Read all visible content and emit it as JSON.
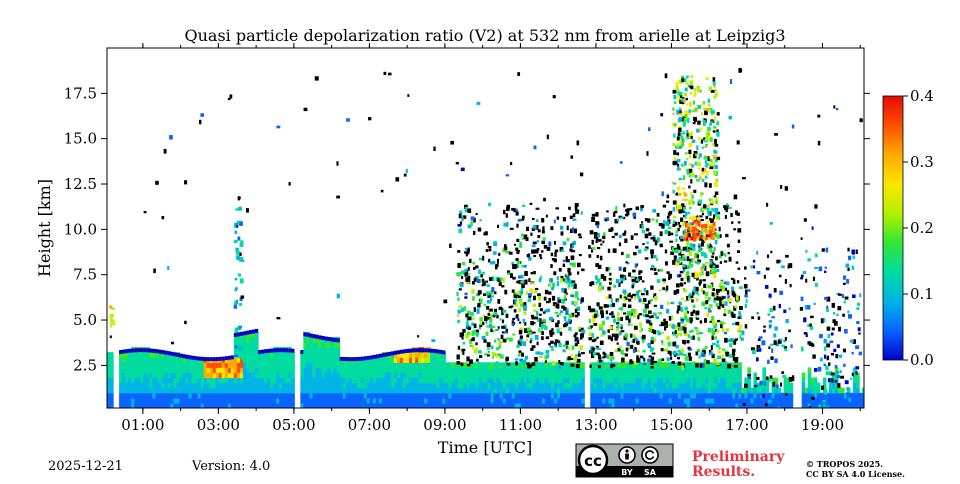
{
  "chart_data": {
    "type": "heatmap",
    "title": "Quasi particle depolarization ratio (V2) at 532 nm from arielle at Leipzig3",
    "xlabel": "Time [UTC]",
    "ylabel": "Height [km]",
    "x_ticks": [
      "01:00",
      "03:00",
      "05:00",
      "07:00",
      "09:00",
      "11:00",
      "13:00",
      "15:00",
      "17:00",
      "19:00"
    ],
    "x_tick_hours": [
      1,
      3,
      5,
      7,
      9,
      11,
      13,
      15,
      17,
      19
    ],
    "xlim_hours": [
      0.05,
      20.1
    ],
    "y_ticks": [
      "2.5",
      "5.0",
      "7.5",
      "10.0",
      "12.5",
      "15.0",
      "17.5"
    ],
    "y_tick_values": [
      2.5,
      5.0,
      7.5,
      10.0,
      12.5,
      15.0,
      17.5
    ],
    "ylim": [
      0.15,
      20.0
    ],
    "colorbar": {
      "min": 0.0,
      "max": 0.4,
      "ticks": [
        "0.0",
        "0.1",
        "0.2",
        "0.3",
        "0.4"
      ],
      "tick_values": [
        0.0,
        0.1,
        0.2,
        0.3,
        0.4
      ],
      "colors": [
        "#0000cd",
        "#0a64ff",
        "#00b4e6",
        "#00dca0",
        "#32e632",
        "#b4f000",
        "#fae600",
        "#ffaa00",
        "#ff5000",
        "#e60a0a"
      ]
    },
    "data_gaps_hours": [
      [
        0.18,
        0.32
      ],
      [
        5.0,
        5.17
      ],
      [
        12.62,
        12.78
      ],
      [
        18.2,
        18.38
      ]
    ],
    "features": [
      {
        "name": "boundary layer",
        "hours": [
          0.1,
          20.0
        ],
        "base_km": 0.2,
        "top_km": 3.0,
        "ratio": 0.1
      },
      {
        "name": "aerosol layer top",
        "hours": [
          0.3,
          9.0
        ],
        "height_km": 3.0,
        "ratio": 0.05
      },
      {
        "name": "high aerosol depol",
        "hours": [
          2.6,
          3.6
        ],
        "height_km": 2.2,
        "ratio": 0.32
      },
      {
        "name": "ice cloud",
        "hours": [
          9.2,
          16.8
        ],
        "base_km": 2.0,
        "top_km": 11.5,
        "ratio": 0.15
      },
      {
        "name": "cirrus",
        "hours": [
          15.1,
          16.0
        ],
        "base_km": 7.5,
        "top_km": 18.5,
        "ratio": 0.2
      },
      {
        "name": "cirrus high depol",
        "hours": [
          15.3,
          16.1
        ],
        "height_km": 10.0,
        "ratio": 0.35
      }
    ]
  },
  "footer": {
    "date": "2025-12-21",
    "version": "Version: 4.0",
    "license_badge": {
      "cc": "cc",
      "by": "BY",
      "sa": "SA"
    },
    "preliminary_line1": "Preliminary",
    "preliminary_line2": "Results.",
    "copyright_line1": "© TROPOS 2025.",
    "copyright_line2": "CC BY SA 4.0 License."
  }
}
